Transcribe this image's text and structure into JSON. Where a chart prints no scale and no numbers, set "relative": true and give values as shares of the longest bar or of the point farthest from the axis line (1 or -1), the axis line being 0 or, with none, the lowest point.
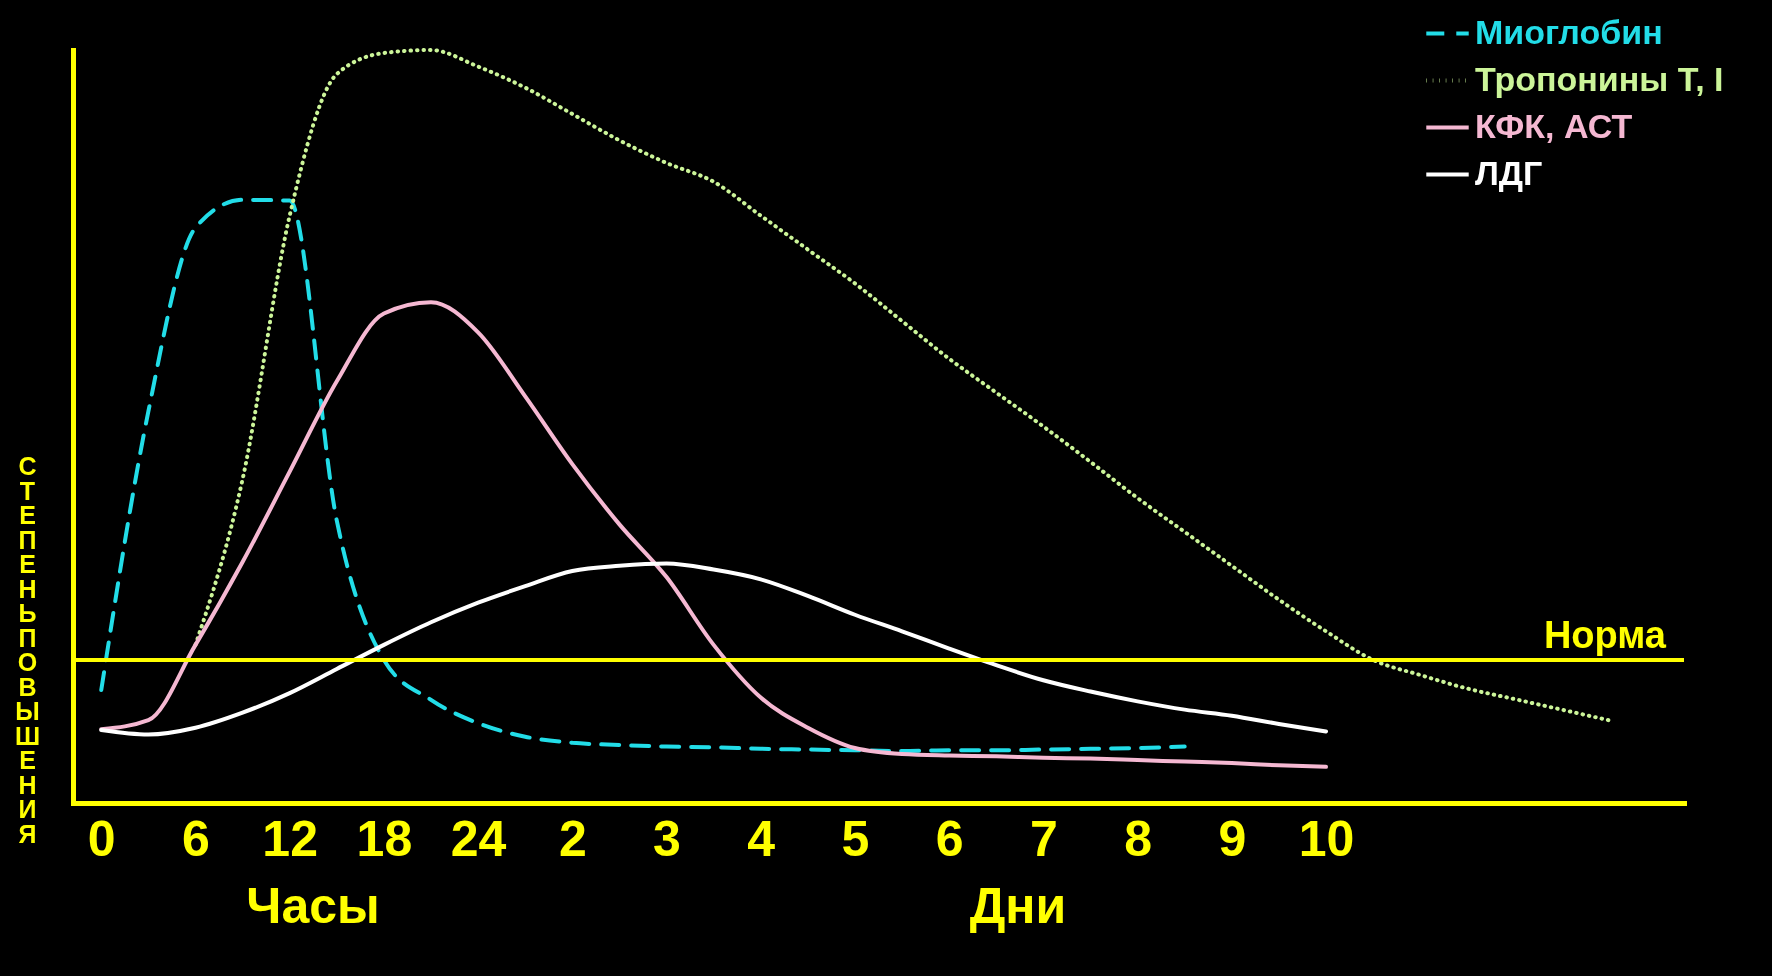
{
  "chart_data": {
    "type": "line",
    "relative": true,
    "ylabel": "СТЕПЕНЬ ПОВЫШЕНИЯ",
    "annotations": [
      "Часы",
      "Дни"
    ],
    "categories": [
      "0",
      null,
      "6",
      null,
      "12",
      null,
      "18",
      null,
      "24",
      null,
      "2",
      null,
      "3",
      null,
      "4",
      null,
      "5",
      null,
      "6",
      null,
      "7",
      null,
      "8",
      null,
      "9",
      null,
      "10",
      null,
      null,
      null,
      null,
      null,
      null,
      null
    ],
    "legend": "top right",
    "ref_lines": [
      {
        "axis": "y",
        "value": 0.19,
        "label": "Норма",
        "color": "#ffff00"
      }
    ],
    "series": [
      {
        "name": "Миоглобин",
        "color": "#22dde8",
        "line_style": "dashed",
        "values": [
          0.15,
          0.52,
          0.764,
          0.801,
          0.8,
          0.375,
          0.19,
          0.137,
          0.106,
          0.088,
          0.08,
          0.077,
          0.075,
          0.074,
          0.072,
          0.071,
          0.07,
          0.069,
          0.07,
          0.07,
          0.071,
          0.072,
          0.073,
          0.075,
          null,
          null,
          null,
          null,
          null,
          null,
          null,
          null,
          null,
          null
        ]
      },
      {
        "name": "Тропонины Т, I",
        "color": "#ccf599",
        "line_style": "dotted",
        "values": [
          null,
          null,
          0.21,
          0.43,
          0.78,
          0.968,
          0.996,
          1,
          0.978,
          0.95,
          0.915,
          0.88,
          0.85,
          0.825,
          0.78,
          0.735,
          0.69,
          0.64,
          0.59,
          0.545,
          0.5,
          0.453,
          0.405,
          0.36,
          0.315,
          0.27,
          0.228,
          0.19,
          0.17,
          0.152,
          0.138,
          0.124,
          0.11,
          null
        ]
      },
      {
        "name": "КФК, АСТ",
        "color": "#f5b8d2",
        "line_style": "solid",
        "values": [
          0.098,
          0.11,
          0.21,
          0.32,
          0.44,
          0.56,
          0.65,
          0.665,
          0.625,
          0.54,
          0.45,
          0.37,
          0.3,
          0.21,
          0.14,
          0.1,
          0.073,
          0.065,
          0.063,
          0.062,
          0.06,
          0.059,
          0.057,
          0.055,
          0.053,
          0.05,
          0.048,
          null,
          null,
          null,
          null,
          null,
          null,
          null
        ]
      },
      {
        "name": "ЛДГ",
        "color": "#ffffff",
        "line_style": "solid",
        "values": [
          0.097,
          0.091,
          0.1,
          0.12,
          0.146,
          0.178,
          0.21,
          0.24,
          0.266,
          0.288,
          0.308,
          0.315,
          0.318,
          0.31,
          0.297,
          0.275,
          0.25,
          0.228,
          0.205,
          0.183,
          0.163,
          0.148,
          0.135,
          0.124,
          0.116,
          0.105,
          0.095,
          null,
          null,
          null,
          null,
          null,
          null,
          null
        ]
      }
    ]
  }
}
